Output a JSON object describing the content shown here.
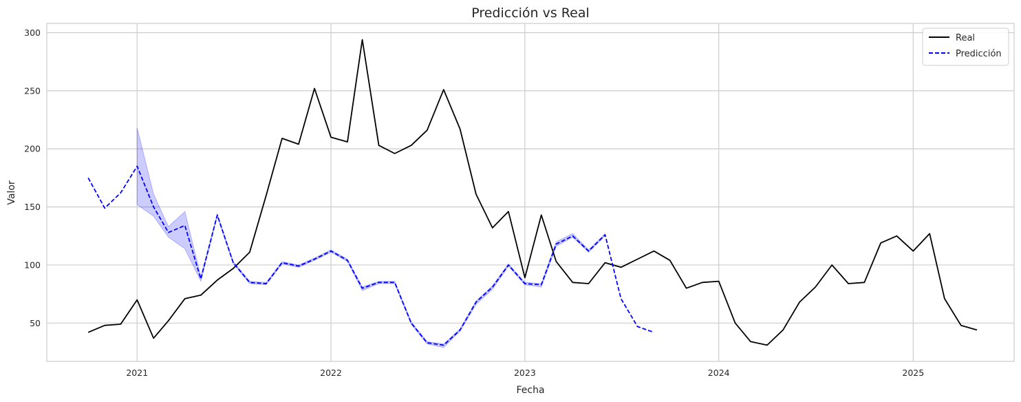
{
  "chart_data": {
    "type": "line",
    "title": "Predicción vs Real",
    "xlabel": "Fecha",
    "ylabel": "Valor",
    "x_range": [
      "2020-07-15",
      "2025-07-10"
    ],
    "ylim": [
      17,
      308
    ],
    "x_ticks": [
      "2021-01-01",
      "2022-01-01",
      "2023-01-01",
      "2024-01-01",
      "2025-01-01"
    ],
    "x_tick_labels": [
      "2021",
      "2022",
      "2023",
      "2024",
      "2025"
    ],
    "y_ticks": [
      50,
      100,
      150,
      200,
      250,
      300
    ],
    "grid": true,
    "legend_position": "top-right",
    "series": [
      {
        "name": "Real",
        "color": "#000000",
        "style": "solid",
        "x": [
          "2020-10-01",
          "2020-11-01",
          "2020-12-01",
          "2021-01-01",
          "2021-02-01",
          "2021-03-01",
          "2021-04-01",
          "2021-05-01",
          "2021-06-01",
          "2021-07-01",
          "2021-08-01",
          "2021-09-01",
          "2021-10-01",
          "2021-11-01",
          "2021-12-01",
          "2022-01-01",
          "2022-02-01",
          "2022-03-01",
          "2022-04-01",
          "2022-05-01",
          "2022-06-01",
          "2022-07-01",
          "2022-08-01",
          "2022-09-01",
          "2022-10-01",
          "2022-11-01",
          "2022-12-01",
          "2023-01-01",
          "2023-02-01",
          "2023-03-01",
          "2023-04-01",
          "2023-05-01",
          "2023-06-01",
          "2023-07-01",
          "2023-08-01",
          "2023-09-01",
          "2023-10-01",
          "2023-11-01",
          "2023-12-01",
          "2024-01-01",
          "2024-02-01",
          "2024-03-01",
          "2024-04-01",
          "2024-05-01",
          "2024-06-01",
          "2024-07-01",
          "2024-08-01",
          "2024-09-01",
          "2024-10-01",
          "2024-11-01",
          "2024-12-01",
          "2025-01-01",
          "2025-02-01",
          "2025-03-01",
          "2025-04-01",
          "2025-05-01"
        ],
        "values": [
          42,
          48,
          49,
          70,
          37,
          52,
          71,
          74,
          87,
          97,
          111,
          160,
          209,
          204,
          252,
          210,
          206,
          294,
          203,
          196,
          203,
          216,
          251,
          217,
          161,
          132,
          146,
          89,
          143,
          103,
          85,
          84,
          102,
          98,
          105,
          112,
          104,
          80,
          85,
          86,
          50,
          34,
          31,
          44,
          68,
          81,
          100,
          84,
          85,
          119,
          125,
          112,
          127,
          71,
          48,
          44
        ]
      },
      {
        "name": "Predicción",
        "color": "#0000ff",
        "style": "dashed",
        "x": [
          "2020-10-01",
          "2020-11-01",
          "2020-12-01",
          "2021-01-01",
          "2021-02-01",
          "2021-03-01",
          "2021-04-01",
          "2021-05-01",
          "2021-06-01",
          "2021-07-01",
          "2021-08-01",
          "2021-09-01",
          "2021-10-01",
          "2021-11-01",
          "2021-12-01",
          "2022-01-01",
          "2022-02-01",
          "2022-03-01",
          "2022-04-01",
          "2022-05-01",
          "2022-06-01",
          "2022-07-01",
          "2022-08-01",
          "2022-09-01",
          "2022-10-01",
          "2022-11-01",
          "2022-12-01",
          "2023-01-01",
          "2023-02-01",
          "2023-03-01",
          "2023-04-01",
          "2023-05-01",
          "2023-06-01",
          "2023-07-01",
          "2023-08-01",
          "2023-09-01"
        ],
        "values": [
          175,
          149,
          162,
          185,
          150,
          128,
          134,
          88,
          143,
          102,
          85,
          84,
          102,
          99,
          105,
          112,
          104,
          80,
          85,
          85,
          50,
          33,
          31,
          44,
          68,
          81,
          100,
          84,
          83,
          118,
          125,
          112,
          126,
          71,
          47,
          42
        ],
        "band": {
          "color": "#0000ff",
          "opacity": 0.2,
          "x": [
            "2021-01-01",
            "2021-02-01",
            "2021-03-01",
            "2021-04-01",
            "2021-05-01",
            "2021-06-01",
            "2021-07-01",
            "2021-08-01",
            "2021-09-01",
            "2021-10-01",
            "2021-11-01",
            "2021-12-01",
            "2022-01-01",
            "2022-02-01",
            "2022-03-01",
            "2022-04-01",
            "2022-05-01",
            "2022-06-01",
            "2022-07-01",
            "2022-08-01",
            "2022-09-01",
            "2022-10-01",
            "2022-11-01",
            "2022-12-01",
            "2023-01-01",
            "2023-02-01",
            "2023-03-01",
            "2023-04-01",
            "2023-05-01",
            "2023-06-01"
          ],
          "lower": [
            152,
            142,
            124,
            114,
            86,
            142,
            101,
            84,
            83,
            101,
            98,
            104,
            111,
            103,
            78,
            84,
            84,
            49,
            32,
            29,
            43,
            66,
            79,
            99,
            83,
            81,
            116,
            124,
            111,
            125
          ],
          "upper": [
            218,
            161,
            133,
            146,
            90,
            144,
            103,
            86,
            85,
            103,
            100,
            106,
            113,
            105,
            81,
            86,
            86,
            51,
            34,
            32,
            45,
            69,
            82,
            101,
            85,
            84,
            120,
            127,
            113,
            127
          ]
        }
      }
    ]
  }
}
